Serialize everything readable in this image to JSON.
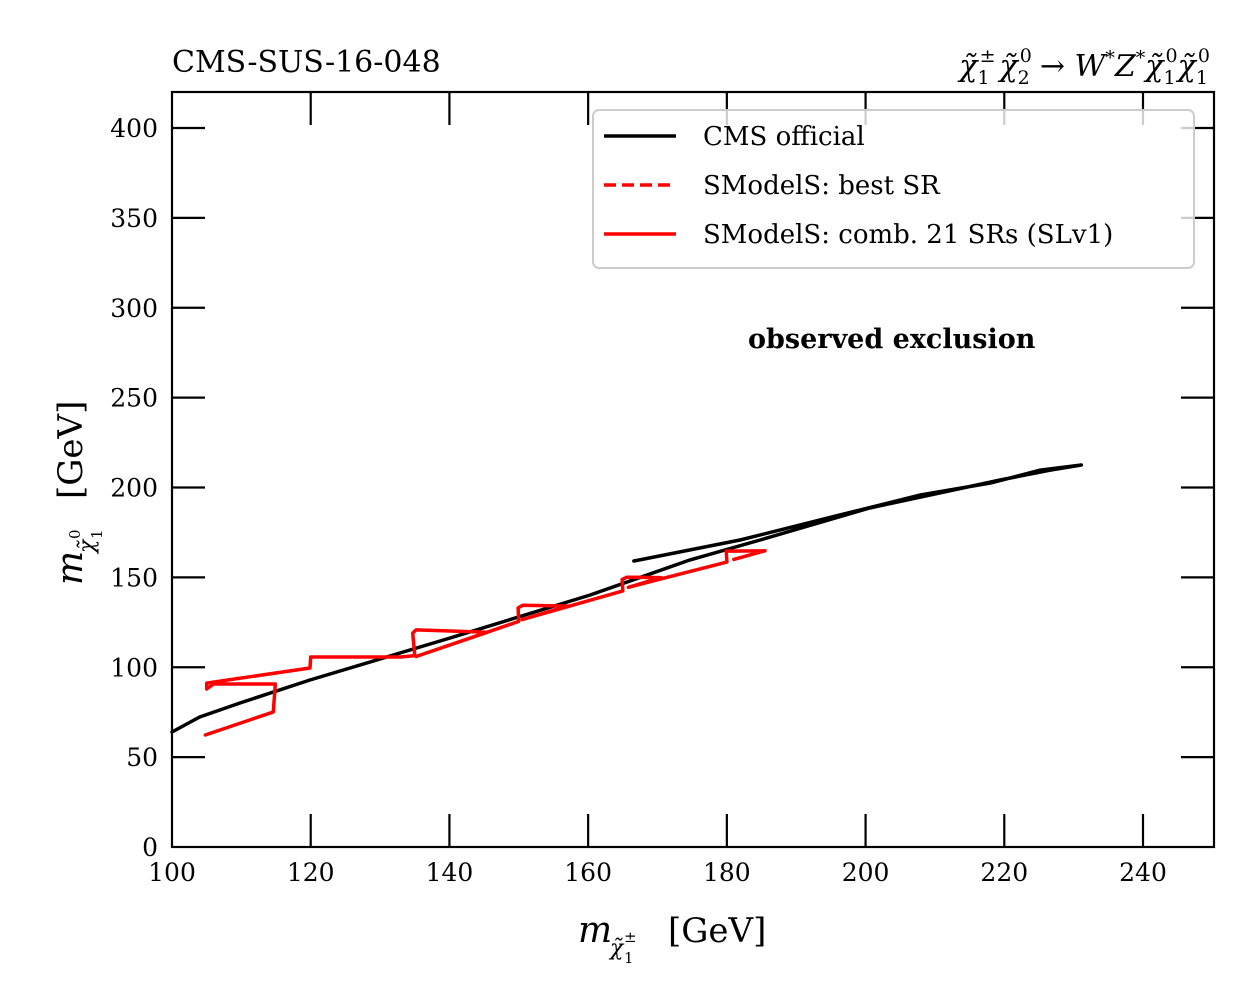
{
  "chart_data": {
    "type": "line",
    "title_left": "CMS-SUS-16-048",
    "title_right": "χ̃₁± χ̃₂⁰ → W* Z* χ̃₁⁰ χ̃₁⁰",
    "xlabel": "m_χ̃₁± [GeV]",
    "ylabel": "m_χ̃₁⁰ [GeV]",
    "xlim": [
      100,
      250
    ],
    "ylim": [
      0,
      420
    ],
    "x_ticks": [
      100,
      120,
      140,
      160,
      180,
      200,
      220,
      240
    ],
    "y_ticks": [
      0,
      50,
      100,
      150,
      200,
      250,
      300,
      350,
      400
    ],
    "grid": false,
    "legend_position": "top-right",
    "annotation": "observed exclusion",
    "series": [
      {
        "name": "CMS official",
        "color": "#000000",
        "style": "solid",
        "points": [
          [
            100,
            64
          ],
          [
            104,
            72.3
          ],
          [
            109.8,
            80.1
          ],
          [
            119.9,
            92.9
          ],
          [
            140.1,
            116.3
          ],
          [
            160.3,
            140.2
          ],
          [
            174.7,
            159.7
          ],
          [
            184.8,
            170.8
          ],
          [
            200.6,
            188.6
          ],
          [
            219.4,
            204.2
          ],
          [
            226.6,
            209.7
          ],
          [
            231.1,
            212.5
          ],
          [
            225.2,
            209.7
          ],
          [
            218,
            202.5
          ],
          [
            207.9,
            195.8
          ],
          [
            196.3,
            184.7
          ],
          [
            181.9,
            170.8
          ],
          [
            166.6,
            159.1
          ]
        ]
      },
      {
        "name": "SModelS: best SR",
        "color": "#ff0000",
        "style": "dashed",
        "points": []
      },
      {
        "name": "SModelS: comb. 21 SRs (SLv1)",
        "color": "#ff0000",
        "style": "solid",
        "points": [
          [
            104.8,
            62.3
          ],
          [
            114.6,
            75.1
          ],
          [
            114.9,
            90.7
          ],
          [
            106,
            90.7
          ],
          [
            105,
            87.9
          ],
          [
            105,
            91.2
          ],
          [
            119.9,
            99.6
          ],
          [
            120,
            105.7
          ],
          [
            133,
            105.7
          ],
          [
            135,
            106.5
          ],
          [
            134.7,
            119
          ],
          [
            135.2,
            120.8
          ],
          [
            145.5,
            119.5
          ],
          [
            135.2,
            106
          ],
          [
            150,
            125.5
          ],
          [
            149.9,
            133
          ],
          [
            150.6,
            134.5
          ],
          [
            157,
            134
          ],
          [
            150.5,
            126.5
          ],
          [
            165,
            142.5
          ],
          [
            164.9,
            148.8
          ],
          [
            165.6,
            150.1
          ],
          [
            170.5,
            149.9
          ],
          [
            165.8,
            144.5
          ],
          [
            180,
            158.5
          ],
          [
            179.9,
            164.6
          ],
          [
            185.5,
            164.8
          ],
          [
            181,
            160
          ]
        ]
      }
    ]
  }
}
